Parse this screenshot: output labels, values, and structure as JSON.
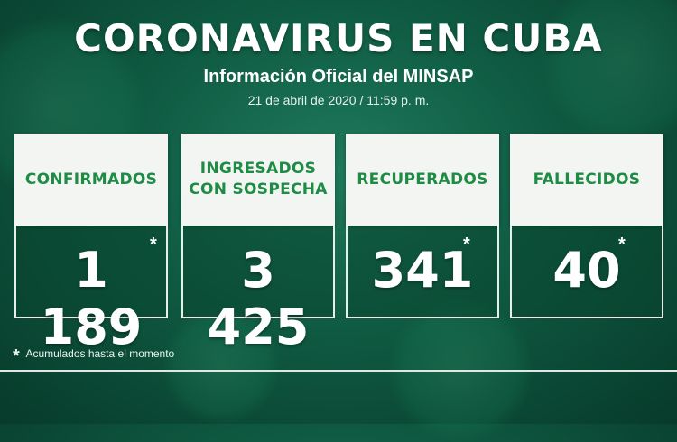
{
  "header": {
    "title": "CORONAVIRUS EN CUBA",
    "subtitle": "Información Oficial del MINSAP",
    "date": "21 de abril de 2020 / 11:59 p. m."
  },
  "cards": [
    {
      "label_line1": "CONFIRMADOS",
      "label_line2": "",
      "value": "1 189",
      "asterisk": "*"
    },
    {
      "label_line1": "INGRESADOS",
      "label_line2": "CON SOSPECHA",
      "value": "3 425",
      "asterisk": ""
    },
    {
      "label_line1": "RECUPERADOS",
      "label_line2": "",
      "value": "341",
      "asterisk": "*"
    },
    {
      "label_line1": "FALLECIDOS",
      "label_line2": "",
      "value": "40",
      "asterisk": "*"
    }
  ],
  "footnote": {
    "star": "*",
    "text": "Acumulados hasta el momento"
  },
  "colors": {
    "accent": "#1f8c45",
    "background": "#0f5a42"
  }
}
